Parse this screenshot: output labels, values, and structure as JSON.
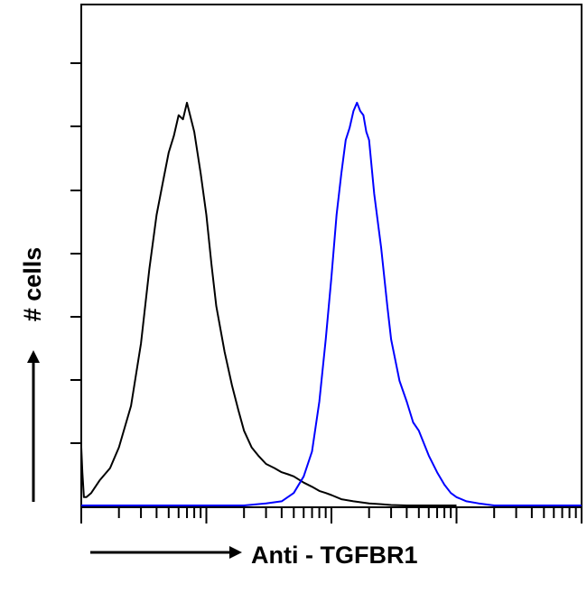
{
  "chart_data": {
    "type": "line",
    "title": "",
    "xlabel": "Anti - TGFBR1",
    "ylabel": "# cells",
    "x_scale": "log",
    "xlim": [
      1,
      10000
    ],
    "ylim": [
      0,
      100
    ],
    "grid": false,
    "legend": "none",
    "series": [
      {
        "color": "#000000",
        "x": [
          1,
          1.02,
          1.05,
          1.1,
          1.2,
          1.4,
          1.7,
          2,
          2.5,
          3,
          3.5,
          4,
          4.5,
          5,
          5.5,
          6,
          6.5,
          7,
          8,
          9,
          10,
          11,
          12,
          14,
          16,
          18,
          20,
          23,
          26,
          30,
          35,
          40,
          45,
          50,
          60,
          70,
          80,
          90,
          100,
          120,
          150,
          200,
          250,
          300,
          400,
          500,
          600,
          700,
          800,
          900,
          1000
        ],
        "y": [
          14,
          8,
          2,
          2,
          3,
          6,
          9,
          14,
          24,
          39,
          57,
          70,
          78,
          85,
          89,
          94,
          93,
          97,
          90,
          80,
          70,
          58,
          48,
          37,
          29,
          23,
          18,
          14,
          12,
          10,
          9,
          8,
          7.5,
          7,
          5.5,
          4.5,
          3.5,
          3,
          2.5,
          1.5,
          1,
          0.5,
          0.3,
          0.1,
          0,
          0,
          0,
          0,
          0,
          0,
          0
        ]
      },
      {
        "color": "#0000ff",
        "x": [
          1,
          10,
          20,
          30,
          40,
          50,
          60,
          70,
          80,
          90,
          100,
          110,
          120,
          130,
          140,
          150,
          160,
          170,
          180,
          190,
          200,
          220,
          250,
          280,
          300,
          350,
          400,
          450,
          500,
          600,
          700,
          800,
          900,
          1000,
          1200,
          1500,
          2000,
          3000,
          10000
        ],
        "y": [
          0,
          0,
          0,
          0.5,
          1,
          3,
          7,
          13,
          25,
          40,
          55,
          70,
          80,
          88,
          91,
          95,
          97,
          95,
          94,
          90,
          88,
          75,
          62,
          48,
          40,
          30,
          25,
          20,
          18,
          12,
          8,
          5,
          3,
          2,
          1,
          0.5,
          0,
          0,
          0
        ]
      }
    ]
  }
}
